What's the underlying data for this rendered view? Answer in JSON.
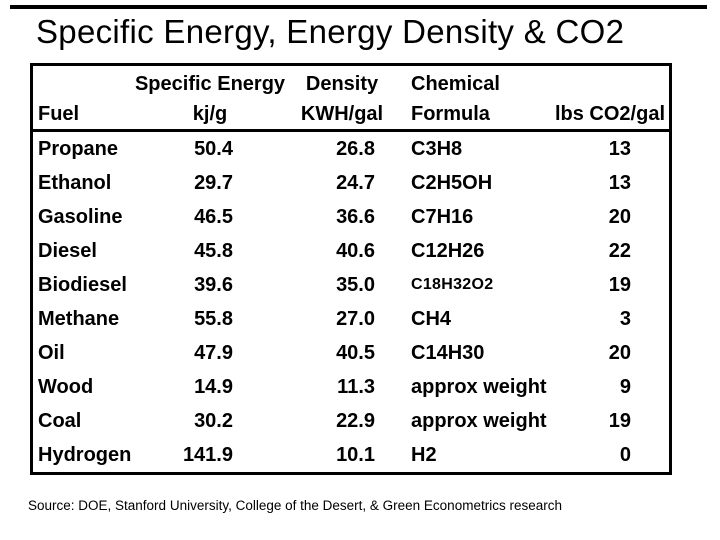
{
  "page": {
    "background": "#ffffff",
    "text_color": "#000000",
    "rule_color": "#000000",
    "border_color": "#000000"
  },
  "title": "Specific Energy, Energy Density & CO2",
  "source_note": "Source: DOE, Stanford University, College of the Desert, & Green Econometrics research",
  "chart_data": {
    "type": "table",
    "title": "Specific Energy, Energy Density & CO2",
    "columns": [
      {
        "line1": "",
        "line2": "Fuel"
      },
      {
        "line1": "Specific Energy",
        "line2": "kj/g"
      },
      {
        "line1": "Density",
        "line2": "KWH/gal"
      },
      {
        "line1": "Chemical",
        "line2": "Formula"
      },
      {
        "line1": "",
        "line2": "lbs CO2/gal"
      }
    ],
    "rows": [
      {
        "fuel": "Propane",
        "specific_energy_kj_g": "50.4",
        "density_kwh_gal": "26.8",
        "formula": "C3H8",
        "lbs_co2_gal": "13"
      },
      {
        "fuel": "Ethanol",
        "specific_energy_kj_g": "29.7",
        "density_kwh_gal": "24.7",
        "formula": "C2H5OH",
        "lbs_co2_gal": "13"
      },
      {
        "fuel": "Gasoline",
        "specific_energy_kj_g": "46.5",
        "density_kwh_gal": "36.6",
        "formula": "C7H16",
        "lbs_co2_gal": "20"
      },
      {
        "fuel": "Diesel",
        "specific_energy_kj_g": "45.8",
        "density_kwh_gal": "40.6",
        "formula": "C12H26",
        "lbs_co2_gal": "22"
      },
      {
        "fuel": "Biodiesel",
        "specific_energy_kj_g": "39.6",
        "density_kwh_gal": "35.0",
        "formula": "C18H32O2",
        "lbs_co2_gal": "19",
        "formula_small": true
      },
      {
        "fuel": "Methane",
        "specific_energy_kj_g": "55.8",
        "density_kwh_gal": "27.0",
        "formula": "CH4",
        "lbs_co2_gal": "3"
      },
      {
        "fuel": "Oil",
        "specific_energy_kj_g": "47.9",
        "density_kwh_gal": "40.5",
        "formula": "C14H30",
        "lbs_co2_gal": "20"
      },
      {
        "fuel": "Wood",
        "specific_energy_kj_g": "14.9",
        "density_kwh_gal": "11.3",
        "formula": "approx weight",
        "lbs_co2_gal": "9"
      },
      {
        "fuel": "Coal",
        "specific_energy_kj_g": "30.2",
        "density_kwh_gal": "22.9",
        "formula": "approx weight",
        "lbs_co2_gal": "19"
      },
      {
        "fuel": "Hydrogen",
        "specific_energy_kj_g": "141.9",
        "density_kwh_gal": "10.1",
        "formula": "H2",
        "lbs_co2_gal": "0"
      }
    ]
  }
}
